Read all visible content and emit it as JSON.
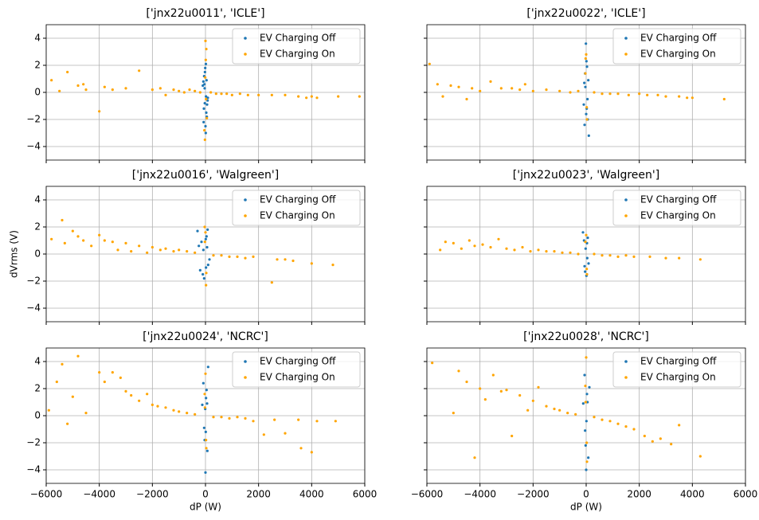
{
  "chart_data": [
    {
      "type": "scatter",
      "title": "['jnx22u0011', 'ICLE']",
      "xlim": [
        -6000,
        6000
      ],
      "ylim": [
        -5,
        5
      ],
      "xticks": [
        -6000,
        -4000,
        -2000,
        0,
        2000,
        4000,
        6000
      ],
      "yticks": [
        {
          "value": -4,
          "label": "−4"
        },
        {
          "value": -2,
          "label": "−2"
        },
        0,
        2,
        4
      ],
      "xtick_labels": false,
      "ytick_labels": true,
      "grid": true,
      "legend": "upper right",
      "series": [
        {
          "name": "EV Charging Off",
          "color": "#1f77b4",
          "x": [
            -50,
            30,
            -80,
            60,
            -20,
            10,
            -100,
            80,
            0,
            -30,
            40,
            -60,
            20,
            -10,
            50,
            -40,
            90,
            -70,
            15,
            -25
          ],
          "values": [
            1.2,
            -1.5,
            0.8,
            -0.9,
            1.5,
            -3.0,
            0.5,
            -0.6,
            -2.5,
            0.3,
            0.9,
            -1.2,
            -0.3,
            1.8,
            -1.8,
            0.6,
            -0.4,
            -2.2,
            2.1,
            -0.8
          ]
        },
        {
          "name": "EV Charging On",
          "color": "#ffa500",
          "x": [
            -5800,
            -5500,
            -5200,
            -4800,
            -4600,
            -4500,
            -4000,
            -3800,
            -3500,
            -3000,
            -2500,
            -2000,
            -1700,
            -1500,
            -1200,
            -1000,
            -800,
            -600,
            -400,
            -200,
            200,
            400,
            600,
            800,
            1000,
            1300,
            1600,
            2000,
            2500,
            3000,
            3500,
            3800,
            4000,
            4200,
            5000,
            5800,
            0,
            30,
            -20,
            10,
            -40,
            50,
            -10,
            20
          ],
          "values": [
            0.9,
            0.1,
            1.5,
            0.5,
            0.6,
            0.2,
            -1.4,
            0.4,
            0.2,
            0.3,
            1.6,
            0.2,
            0.3,
            -0.2,
            0.2,
            0.1,
            0.0,
            0.2,
            0.1,
            0.0,
            0.0,
            -0.1,
            -0.1,
            -0.1,
            -0.2,
            -0.1,
            -0.2,
            -0.2,
            -0.2,
            -0.2,
            -0.3,
            -0.4,
            -0.3,
            -0.4,
            -0.3,
            -0.3,
            3.8,
            3.2,
            -3.5,
            2.4,
            -2.8,
            -1.9,
            1.1,
            -0.5
          ]
        }
      ]
    },
    {
      "type": "scatter",
      "title": "['jnx22u0022', 'ICLE']",
      "xlim": [
        -6000,
        6000
      ],
      "ylim": [
        -5,
        5
      ],
      "xticks": [
        -6000,
        -4000,
        -2000,
        0,
        2000,
        4000,
        6000
      ],
      "yticks": [
        -4,
        -2,
        0,
        2,
        4
      ],
      "xtick_labels": false,
      "ytick_labels": false,
      "grid": true,
      "legend": "upper right",
      "series": [
        {
          "name": "EV Charging Off",
          "color": "#1f77b4",
          "x": [
            -40,
            20,
            -70,
            60,
            -10,
            100,
            -90,
            30,
            0,
            -30,
            50,
            80,
            -60,
            10
          ],
          "values": [
            1.4,
            -1.2,
            0.7,
            -2.0,
            3.6,
            -3.2,
            -0.9,
            1.9,
            -1.6,
            0.4,
            -0.5,
            0.9,
            -2.4,
            2.3
          ]
        },
        {
          "name": "EV Charging On",
          "color": "#ffa500",
          "x": [
            -5900,
            -5600,
            -5400,
            -5100,
            -4800,
            -4500,
            -4300,
            -4000,
            -3600,
            -3200,
            -2800,
            -2500,
            -2300,
            -2000,
            -1500,
            -1000,
            -600,
            -300,
            300,
            600,
            900,
            1200,
            1600,
            2000,
            2300,
            2700,
            3000,
            3500,
            3800,
            4000,
            5200,
            0,
            30,
            -30,
            20,
            -20
          ],
          "values": [
            2.1,
            0.6,
            -0.3,
            0.5,
            0.4,
            -0.5,
            0.3,
            0.1,
            0.8,
            0.3,
            0.3,
            0.2,
            0.6,
            0.1,
            0.2,
            0.1,
            0.0,
            0.1,
            0.0,
            -0.1,
            -0.1,
            -0.1,
            -0.2,
            -0.1,
            -0.2,
            -0.2,
            -0.3,
            -0.3,
            -0.4,
            -0.4,
            -0.5,
            2.8,
            -2.0,
            1.4,
            -1.1,
            2.5
          ]
        }
      ]
    },
    {
      "type": "scatter",
      "title": "['jnx22u0016', 'Walgreen']",
      "xlim": [
        -6000,
        6000
      ],
      "ylim": [
        -5,
        5
      ],
      "xticks": [
        -6000,
        -4000,
        -2000,
        0,
        2000,
        4000,
        6000
      ],
      "yticks": [
        {
          "value": -4,
          "label": "−4"
        },
        {
          "value": -2,
          "label": "−2"
        },
        0,
        2,
        4
      ],
      "xtick_labels": false,
      "ytick_labels": true,
      "ylabel": "dVrms (V)",
      "grid": true,
      "legend": "upper right",
      "series": [
        {
          "name": "EV Charging Off",
          "color": "#1f77b4",
          "x": [
            -300,
            -150,
            -50,
            40,
            100,
            -200,
            60,
            -100,
            10,
            -80,
            150,
            20,
            -250,
            80
          ],
          "values": [
            1.7,
            0.9,
            -1.8,
            1.3,
            -0.8,
            -1.2,
            0.5,
            -1.5,
            1.1,
            0.3,
            -0.4,
            -1.0,
            0.6,
            1.8
          ]
        },
        {
          "name": "EV Charging On",
          "color": "#ffa500",
          "x": [
            -5800,
            -5400,
            -5300,
            -5000,
            -4800,
            -4600,
            -4300,
            -4000,
            -3800,
            -3500,
            -3300,
            -3000,
            -2800,
            -2500,
            -2200,
            -2000,
            -1700,
            -1500,
            -1200,
            -1000,
            -700,
            -400,
            300,
            600,
            900,
            1200,
            1500,
            1800,
            2500,
            2700,
            3000,
            3300,
            4000,
            4800,
            0,
            30,
            -30,
            20,
            -20
          ],
          "values": [
            1.1,
            2.5,
            0.8,
            1.7,
            1.3,
            1.0,
            0.6,
            1.4,
            1.0,
            0.9,
            0.3,
            0.8,
            0.2,
            0.6,
            0.1,
            0.5,
            0.3,
            0.4,
            0.2,
            0.3,
            0.2,
            0.1,
            -0.1,
            -0.1,
            -0.2,
            -0.2,
            -0.3,
            -0.2,
            -2.1,
            -0.4,
            -0.4,
            -0.5,
            -0.7,
            -0.8,
            1.6,
            -1.4,
            2.0,
            -2.3,
            0.9
          ]
        }
      ]
    },
    {
      "type": "scatter",
      "title": "['jnx22u0023', 'Walgreen']",
      "xlim": [
        -6000,
        6000
      ],
      "ylim": [
        -5,
        5
      ],
      "xticks": [
        -6000,
        -4000,
        -2000,
        0,
        2000,
        4000,
        6000
      ],
      "yticks": [
        -4,
        -2,
        0,
        2,
        4
      ],
      "xtick_labels": false,
      "ytick_labels": false,
      "grid": true,
      "legend": "upper right",
      "series": [
        {
          "name": "EV Charging Off",
          "color": "#1f77b4",
          "x": [
            -120,
            -40,
            30,
            90,
            -80,
            10,
            -20,
            60,
            -60,
            40
          ],
          "values": [
            1.6,
            -1.3,
            0.8,
            -0.7,
            1.0,
            -1.6,
            0.4,
            1.2,
            -0.9,
            -0.3
          ]
        },
        {
          "name": "EV Charging On",
          "color": "#ffa500",
          "x": [
            -5500,
            -5300,
            -5000,
            -4700,
            -4400,
            -4200,
            -3900,
            -3600,
            -3300,
            -3000,
            -2700,
            -2400,
            -2100,
            -1800,
            -1500,
            -1200,
            -900,
            -600,
            -300,
            300,
            600,
            900,
            1200,
            1500,
            1800,
            2400,
            3000,
            3500,
            4300,
            0,
            30,
            -30,
            20
          ],
          "values": [
            0.3,
            0.9,
            0.8,
            0.4,
            1.0,
            0.6,
            0.7,
            0.5,
            1.1,
            0.4,
            0.3,
            0.5,
            0.2,
            0.3,
            0.2,
            0.2,
            0.1,
            0.1,
            0.0,
            0.0,
            -0.1,
            -0.1,
            -0.2,
            -0.1,
            -0.2,
            -0.2,
            -0.3,
            -0.3,
            -0.4,
            1.4,
            -1.5,
            0.9,
            -1.1
          ]
        }
      ]
    },
    {
      "type": "scatter",
      "title": "['jnx22u0024', 'NCRC']",
      "xlim": [
        -6000,
        6000
      ],
      "ylim": [
        -5,
        5
      ],
      "xticks": [
        {
          "value": -6000,
          "label": "−6000"
        },
        {
          "value": -4000,
          "label": "−4000"
        },
        {
          "value": -2000,
          "label": "−2000"
        },
        0,
        2000,
        4000,
        6000
      ],
      "yticks": [
        {
          "value": -4,
          "label": "−4"
        },
        {
          "value": -2,
          "label": "−2"
        },
        0,
        2,
        4
      ],
      "xtick_labels": true,
      "ytick_labels": true,
      "xlabel": "dP (W)",
      "grid": true,
      "legend": "upper right",
      "series": [
        {
          "name": "EV Charging Off",
          "color": "#1f77b4",
          "x": [
            -80,
            -30,
            20,
            70,
            -120,
            100,
            0,
            -50,
            40,
            10,
            -10,
            60
          ],
          "values": [
            2.4,
            -1.8,
            1.3,
            -2.6,
            0.8,
            3.6,
            -4.2,
            -0.9,
            1.9,
            -1.2,
            0.5,
            0.9
          ]
        },
        {
          "name": "EV Charging On",
          "color": "#ffa500",
          "x": [
            -5900,
            -5600,
            -5400,
            -5200,
            -5000,
            -4800,
            -4500,
            -4000,
            -3800,
            -3500,
            -3200,
            -3000,
            -2800,
            -2500,
            -2200,
            -2000,
            -1800,
            -1500,
            -1200,
            -1000,
            -700,
            -400,
            300,
            600,
            900,
            1200,
            1500,
            1800,
            2200,
            2600,
            3000,
            3500,
            3600,
            4000,
            4200,
            4900,
            0,
            30,
            -30,
            20,
            -20
          ],
          "values": [
            0.4,
            2.5,
            3.8,
            -0.6,
            1.4,
            4.4,
            0.2,
            3.2,
            2.5,
            3.2,
            2.8,
            1.8,
            1.5,
            1.1,
            1.6,
            0.8,
            0.7,
            0.6,
            0.4,
            0.3,
            0.2,
            0.1,
            -0.1,
            -0.1,
            -0.2,
            -0.1,
            -0.2,
            -0.4,
            -1.4,
            -0.3,
            -1.3,
            -0.3,
            -2.4,
            -2.7,
            -0.4,
            -0.4,
            3.1,
            -2.4,
            1.6,
            -1.8,
            0.6
          ]
        }
      ]
    },
    {
      "type": "scatter",
      "title": "['jnx22u0028', 'NCRC']",
      "xlim": [
        -6000,
        6000
      ],
      "ylim": [
        -5,
        5
      ],
      "xticks": [
        {
          "value": -6000,
          "label": "−6000"
        },
        {
          "value": -4000,
          "label": "−4000"
        },
        {
          "value": -2000,
          "label": "−2000"
        },
        0,
        2000,
        4000,
        6000
      ],
      "yticks": [
        -4,
        -2,
        0,
        2,
        4
      ],
      "xtick_labels": true,
      "ytick_labels": false,
      "xlabel": "dP (W)",
      "grid": true,
      "legend": "upper right",
      "series": [
        {
          "name": "EV Charging Off",
          "color": "#1f77b4",
          "x": [
            -60,
            -20,
            30,
            80,
            -110,
            120,
            0,
            -40,
            50,
            10
          ],
          "values": [
            3.0,
            -2.2,
            1.6,
            -3.1,
            0.9,
            2.1,
            -4.0,
            -1.1,
            1.0,
            -0.4
          ]
        },
        {
          "name": "EV Charging On",
          "color": "#ffa500",
          "x": [
            -5800,
            -5000,
            -4800,
            -4500,
            -4200,
            -4000,
            -3800,
            -3500,
            -3200,
            -3000,
            -2800,
            -2500,
            -2200,
            -2000,
            -1800,
            -1500,
            -1200,
            -1000,
            -700,
            -400,
            300,
            600,
            900,
            1200,
            1500,
            1800,
            2200,
            2500,
            2800,
            3200,
            3500,
            4300,
            0,
            30,
            -30,
            20,
            -20
          ],
          "values": [
            3.9,
            0.2,
            3.3,
            2.5,
            -3.1,
            2.0,
            1.2,
            3.0,
            1.8,
            1.9,
            -1.5,
            1.5,
            0.4,
            1.1,
            2.1,
            0.7,
            0.5,
            0.4,
            0.2,
            0.1,
            -0.1,
            -0.3,
            -0.4,
            -0.6,
            -0.8,
            -1.0,
            -1.5,
            -1.9,
            -1.7,
            -2.1,
            -0.7,
            -3.0,
            4.3,
            -3.4,
            2.2,
            -2.0,
            1.0
          ]
        }
      ]
    }
  ]
}
